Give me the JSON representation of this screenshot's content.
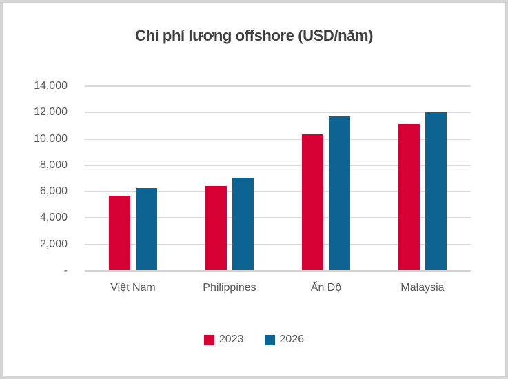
{
  "window": {
    "background": "#FFFFFF",
    "border_color": "#D4D4D4"
  },
  "colors": {
    "title_text": "#3F3F3F",
    "axis_text": "#595959",
    "gridline": "#D9D9D9",
    "baseline": "#D2D2D2"
  },
  "chart_data": {
    "type": "bar",
    "title": "Chi phí lương offshore (USD/năm)",
    "xlabel": "",
    "ylabel": "",
    "categories": [
      "Việt Nam",
      "Philippines",
      "Ấn Độ",
      "Malaysia"
    ],
    "series": [
      {
        "name": "2023",
        "color": "#D50034",
        "values": [
          5700,
          6450,
          10350,
          11150
        ]
      },
      {
        "name": "2026",
        "color": "#0D6493",
        "values": [
          6250,
          7050,
          11700,
          12000
        ]
      }
    ],
    "ylim": [
      0,
      14000
    ],
    "yticks": [
      {
        "value": 0,
        "label": "-"
      },
      {
        "value": 2000,
        "label": "2,000"
      },
      {
        "value": 4000,
        "label": "4,000"
      },
      {
        "value": 6000,
        "label": "6,000"
      },
      {
        "value": 8000,
        "label": "8,000"
      },
      {
        "value": 10000,
        "label": "10,000"
      },
      {
        "value": 12000,
        "label": "12,000"
      },
      {
        "value": 14000,
        "label": "14,000"
      }
    ],
    "grid": "horizontal",
    "legend_position": "bottom"
  }
}
